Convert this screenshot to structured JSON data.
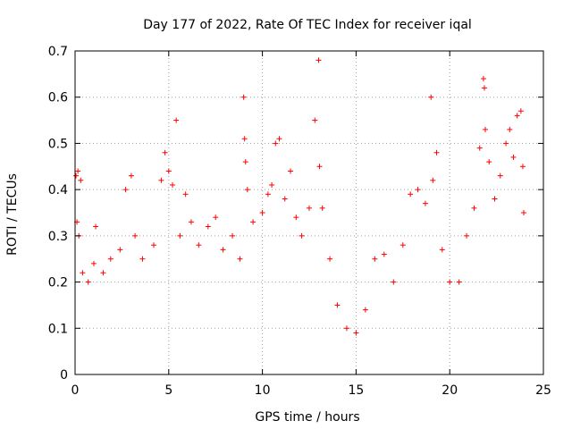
{
  "chart_data": {
    "type": "scatter",
    "title": "Day 177 of 2022, Rate Of TEC Index for receiver iqal",
    "xlabel": "GPS time / hours",
    "ylabel": "ROTI / TECUs",
    "xlim": [
      0,
      25
    ],
    "ylim": [
      0,
      0.7
    ],
    "xticks": [
      0,
      5,
      10,
      15,
      20,
      25
    ],
    "yticks": [
      0,
      0.1,
      0.2,
      0.3,
      0.4,
      0.5,
      0.6,
      0.7
    ],
    "ytick_labels": [
      "0",
      "0.1",
      "0.2",
      "0.3",
      "0.4",
      "0.5",
      "0.6",
      "0.7"
    ],
    "grid": true,
    "marker": "+",
    "color": "#ff0000",
    "series": [
      {
        "values": [
          [
            0.05,
            0.43
          ],
          [
            0.15,
            0.44
          ],
          [
            0.3,
            0.42
          ],
          [
            0.1,
            0.33
          ],
          [
            0.2,
            0.3
          ],
          [
            0.4,
            0.22
          ],
          [
            0.7,
            0.2
          ],
          [
            1.0,
            0.24
          ],
          [
            1.1,
            0.32
          ],
          [
            1.5,
            0.22
          ],
          [
            1.9,
            0.25
          ],
          [
            2.4,
            0.27
          ],
          [
            2.7,
            0.4
          ],
          [
            3.0,
            0.43
          ],
          [
            3.2,
            0.3
          ],
          [
            3.6,
            0.25
          ],
          [
            4.2,
            0.28
          ],
          [
            4.6,
            0.42
          ],
          [
            4.8,
            0.48
          ],
          [
            5.0,
            0.44
          ],
          [
            5.2,
            0.41
          ],
          [
            5.4,
            0.55
          ],
          [
            5.6,
            0.3
          ],
          [
            5.9,
            0.39
          ],
          [
            6.2,
            0.33
          ],
          [
            6.6,
            0.28
          ],
          [
            7.1,
            0.32
          ],
          [
            7.5,
            0.34
          ],
          [
            7.9,
            0.27
          ],
          [
            8.4,
            0.3
          ],
          [
            8.8,
            0.25
          ],
          [
            9.0,
            0.6
          ],
          [
            9.05,
            0.51
          ],
          [
            9.1,
            0.46
          ],
          [
            9.2,
            0.4
          ],
          [
            9.5,
            0.33
          ],
          [
            10.0,
            0.35
          ],
          [
            10.3,
            0.39
          ],
          [
            10.5,
            0.41
          ],
          [
            10.7,
            0.5
          ],
          [
            10.9,
            0.51
          ],
          [
            11.2,
            0.38
          ],
          [
            11.5,
            0.44
          ],
          [
            11.8,
            0.34
          ],
          [
            12.1,
            0.3
          ],
          [
            12.5,
            0.36
          ],
          [
            12.8,
            0.55
          ],
          [
            13.0,
            0.68
          ],
          [
            13.05,
            0.45
          ],
          [
            13.2,
            0.36
          ],
          [
            13.6,
            0.25
          ],
          [
            14.0,
            0.15
          ],
          [
            14.5,
            0.1
          ],
          [
            15.0,
            0.09
          ],
          [
            15.5,
            0.14
          ],
          [
            16.0,
            0.25
          ],
          [
            16.5,
            0.26
          ],
          [
            17.0,
            0.2
          ],
          [
            17.5,
            0.28
          ],
          [
            17.9,
            0.39
          ],
          [
            18.3,
            0.4
          ],
          [
            18.7,
            0.37
          ],
          [
            19.0,
            0.6
          ],
          [
            19.1,
            0.42
          ],
          [
            19.3,
            0.48
          ],
          [
            19.6,
            0.27
          ],
          [
            20.0,
            0.2
          ],
          [
            20.5,
            0.2
          ],
          [
            20.9,
            0.3
          ],
          [
            21.3,
            0.36
          ],
          [
            21.6,
            0.49
          ],
          [
            21.8,
            0.64
          ],
          [
            21.85,
            0.62
          ],
          [
            21.9,
            0.53
          ],
          [
            22.1,
            0.46
          ],
          [
            22.4,
            0.38
          ],
          [
            22.7,
            0.43
          ],
          [
            23.0,
            0.5
          ],
          [
            23.2,
            0.53
          ],
          [
            23.4,
            0.47
          ],
          [
            23.6,
            0.56
          ],
          [
            23.8,
            0.57
          ],
          [
            23.9,
            0.45
          ],
          [
            23.95,
            0.35
          ]
        ]
      }
    ]
  }
}
